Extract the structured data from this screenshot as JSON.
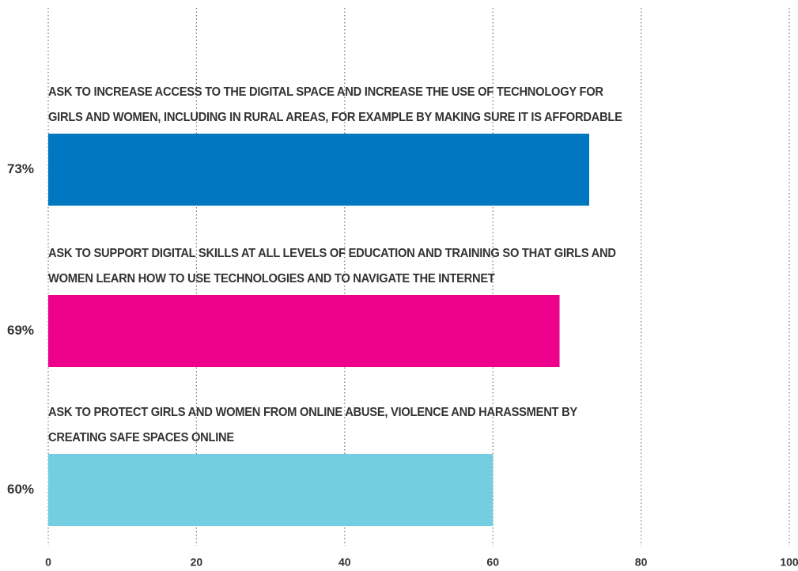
{
  "chart_data": {
    "type": "bar",
    "orientation": "horizontal",
    "categories": [
      "ASK TO INCREASE ACCESS TO THE DIGITAL SPACE AND INCREASE THE USE OF TECHNOLOGY FOR GIRLS AND WOMEN, INCLUDING IN RURAL AREAS, FOR EXAMPLE BY MAKING SURE IT IS AFFORDABLE",
      "ASK TO SUPPORT DIGITAL SKILLS AT ALL LEVELS OF EDUCATION AND TRAINING SO THAT GIRLS AND WOMEN LEARN HOW TO USE TECHNOLOGIES AND TO NAVIGATE THE INTERNET",
      "ASK TO PROTECT GIRLS AND WOMEN FROM ONLINE ABUSE, VIOLENCE AND HARASSMENT BY CREATING SAFE SPACES ONLINE"
    ],
    "values": [
      73,
      69,
      60
    ],
    "value_labels": [
      "73%",
      "69%",
      "60%"
    ],
    "colors": [
      "#0077c0",
      "#ec008c",
      "#72cee0"
    ],
    "xlim": [
      0,
      100
    ],
    "xticks": [
      0,
      20,
      40,
      60,
      80,
      100
    ],
    "grid": true
  }
}
